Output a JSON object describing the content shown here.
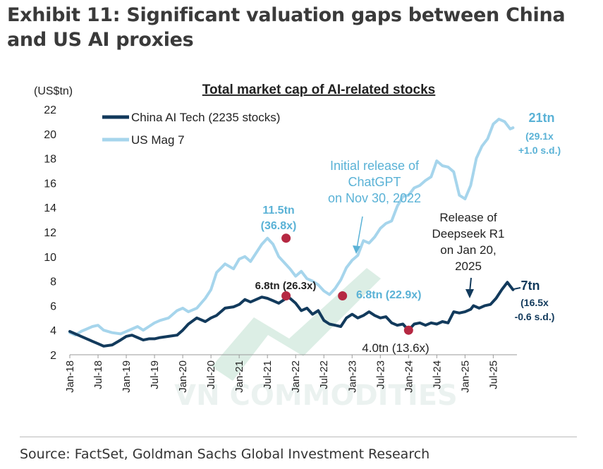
{
  "exhibit_title": "Exhibit 11: Significant valuation gaps between China and US AI proxies",
  "source": "Source: FactSet, Goldman Sachs Global Investment Research",
  "watermark": "VN COMMODITIES",
  "colors": {
    "china": "#123a5c",
    "us": "#a6d5ec",
    "marker": "#b52842",
    "text_blue": "#5ab2d6",
    "dark": "#222222"
  },
  "chart_data": {
    "type": "line",
    "title": "Total market cap of AI-related stocks",
    "ylabel": "(US$tn)",
    "ylim": [
      2,
      22
    ],
    "yticks": [
      2,
      4,
      6,
      8,
      10,
      12,
      14,
      16,
      18,
      20,
      22
    ],
    "xlim": [
      2018.0,
      2025.92
    ],
    "xticks": [
      {
        "label": "Jan-18",
        "x": 2018.0
      },
      {
        "label": "Jul-18",
        "x": 2018.5
      },
      {
        "label": "Jan-19",
        "x": 2019.0
      },
      {
        "label": "Jul-19",
        "x": 2019.5
      },
      {
        "label": "Jan-20",
        "x": 2020.0
      },
      {
        "label": "Jul-20",
        "x": 2020.5
      },
      {
        "label": "Jan-21",
        "x": 2021.0
      },
      {
        "label": "Jul-21",
        "x": 2021.5
      },
      {
        "label": "Jan-22",
        "x": 2022.0
      },
      {
        "label": "Jul-22",
        "x": 2022.5
      },
      {
        "label": "Jan-23",
        "x": 2023.0
      },
      {
        "label": "Jul-23",
        "x": 2023.5
      },
      {
        "label": "Jan-24",
        "x": 2024.0
      },
      {
        "label": "Jul-24",
        "x": 2024.5
      },
      {
        "label": "Jan-25",
        "x": 2025.0
      },
      {
        "label": "Jul-25",
        "x": 2025.5
      }
    ],
    "legend": [
      "China AI Tech (2235 stocks)",
      "US Mag 7"
    ],
    "series": [
      {
        "name": "China AI Tech (2235 stocks)",
        "x": [
          2018.0,
          2018.1,
          2018.2,
          2018.3,
          2018.4,
          2018.5,
          2018.6,
          2018.75,
          2018.9,
          2019.0,
          2019.1,
          2019.2,
          2019.3,
          2019.4,
          2019.5,
          2019.6,
          2019.75,
          2019.9,
          2020.0,
          2020.1,
          2020.25,
          2020.4,
          2020.5,
          2020.6,
          2020.75,
          2020.9,
          2021.0,
          2021.1,
          2021.2,
          2021.3,
          2021.4,
          2021.5,
          2021.6,
          2021.7,
          2021.8,
          2021.85,
          2021.9,
          2022.0,
          2022.1,
          2022.2,
          2022.3,
          2022.4,
          2022.5,
          2022.6,
          2022.7,
          2022.8,
          2022.9,
          2023.0,
          2023.1,
          2023.2,
          2023.3,
          2023.4,
          2023.5,
          2023.6,
          2023.7,
          2023.8,
          2023.9,
          2024.0,
          2024.1,
          2024.2,
          2024.3,
          2024.4,
          2024.5,
          2024.6,
          2024.7,
          2024.8,
          2024.9,
          2025.0,
          2025.1,
          2025.15,
          2025.25,
          2025.35,
          2025.45,
          2025.55,
          2025.65,
          2025.75,
          2025.85
        ],
        "values": [
          3.9,
          3.7,
          3.5,
          3.3,
          3.1,
          2.9,
          2.7,
          2.8,
          3.2,
          3.5,
          3.6,
          3.4,
          3.2,
          3.3,
          3.3,
          3.4,
          3.5,
          3.6,
          4.0,
          4.5,
          5.0,
          4.7,
          5.0,
          5.2,
          5.8,
          5.9,
          6.1,
          6.5,
          6.3,
          6.5,
          6.7,
          6.6,
          6.4,
          6.2,
          6.5,
          6.8,
          6.6,
          6.2,
          5.6,
          5.8,
          5.3,
          5.6,
          4.8,
          4.5,
          4.4,
          4.3,
          5.0,
          5.3,
          5.0,
          5.2,
          5.5,
          5.2,
          5.0,
          5.1,
          4.6,
          4.4,
          4.5,
          4.0,
          4.5,
          4.6,
          4.4,
          4.6,
          4.5,
          4.7,
          4.6,
          5.5,
          5.4,
          5.5,
          5.7,
          6.0,
          5.8,
          6.0,
          6.1,
          6.6,
          7.3,
          7.9,
          7.3
        ]
      },
      {
        "name": "US Mag 7",
        "x": [
          2018.0,
          2018.1,
          2018.2,
          2018.3,
          2018.4,
          2018.5,
          2018.6,
          2018.75,
          2018.9,
          2019.0,
          2019.1,
          2019.2,
          2019.3,
          2019.4,
          2019.5,
          2019.6,
          2019.75,
          2019.9,
          2020.0,
          2020.1,
          2020.25,
          2020.4,
          2020.5,
          2020.6,
          2020.75,
          2020.9,
          2021.0,
          2021.1,
          2021.2,
          2021.3,
          2021.4,
          2021.5,
          2021.6,
          2021.7,
          2021.8,
          2021.9,
          2022.0,
          2022.1,
          2022.2,
          2022.3,
          2022.4,
          2022.5,
          2022.6,
          2022.7,
          2022.8,
          2022.9,
          2023.0,
          2023.1,
          2023.2,
          2023.3,
          2023.4,
          2023.5,
          2023.6,
          2023.7,
          2023.8,
          2023.9,
          2024.0,
          2024.1,
          2024.2,
          2024.3,
          2024.4,
          2024.5,
          2024.6,
          2024.7,
          2024.8,
          2024.9,
          2025.0,
          2025.1,
          2025.2,
          2025.3,
          2025.4,
          2025.5,
          2025.6,
          2025.7,
          2025.8,
          2025.85
        ],
        "values": [
          3.8,
          3.6,
          3.9,
          4.1,
          4.3,
          4.4,
          4.0,
          3.8,
          3.7,
          3.9,
          4.1,
          4.3,
          4.0,
          4.3,
          4.6,
          4.8,
          5.0,
          5.6,
          5.8,
          5.5,
          5.8,
          6.6,
          7.3,
          8.7,
          9.4,
          9.0,
          9.8,
          10.0,
          9.6,
          10.3,
          11.0,
          11.5,
          11.0,
          10.0,
          9.5,
          9.0,
          8.4,
          8.8,
          8.2,
          8.0,
          7.7,
          7.2,
          6.9,
          7.4,
          8.1,
          9.1,
          9.7,
          10.1,
          11.3,
          11.1,
          11.6,
          12.3,
          12.7,
          12.9,
          14.1,
          14.9,
          15.0,
          15.6,
          15.8,
          16.2,
          16.5,
          17.8,
          17.4,
          17.3,
          16.9,
          15.0,
          14.7,
          15.8,
          18.0,
          19.0,
          19.6,
          20.8,
          21.2,
          21.0,
          20.4,
          20.5
        ]
      }
    ],
    "annotations": {
      "chatgpt": "Initial release of\nChatGPT\non Nov 30, 2022",
      "deepseek": "Release of\nDeepseek R1\non Jan 20,\n2025",
      "us_peak_2021": "11.5tn\n(36.8x)",
      "china_peak_2021": "6.8tn (26.3x)",
      "us_trough_2022": "6.8tn (22.9x)",
      "china_trough_2024": "4.0tn (13.6x)",
      "us_end": "21tn",
      "us_end_detail": "(29.1x\n+1.0 s.d.)",
      "china_end": "7tn",
      "china_end_detail": "(16.5x\n-0.6 s.d.)"
    },
    "markers": [
      {
        "series": "US Mag 7",
        "x": 2021.83,
        "value": 11.5
      },
      {
        "series": "China AI Tech (2235 stocks)",
        "x": 2021.83,
        "value": 6.8
      },
      {
        "series": "US Mag 7",
        "x": 2022.83,
        "value": 6.8
      },
      {
        "series": "China AI Tech (2235 stocks)",
        "x": 2024.0,
        "value": 4.0
      }
    ]
  }
}
